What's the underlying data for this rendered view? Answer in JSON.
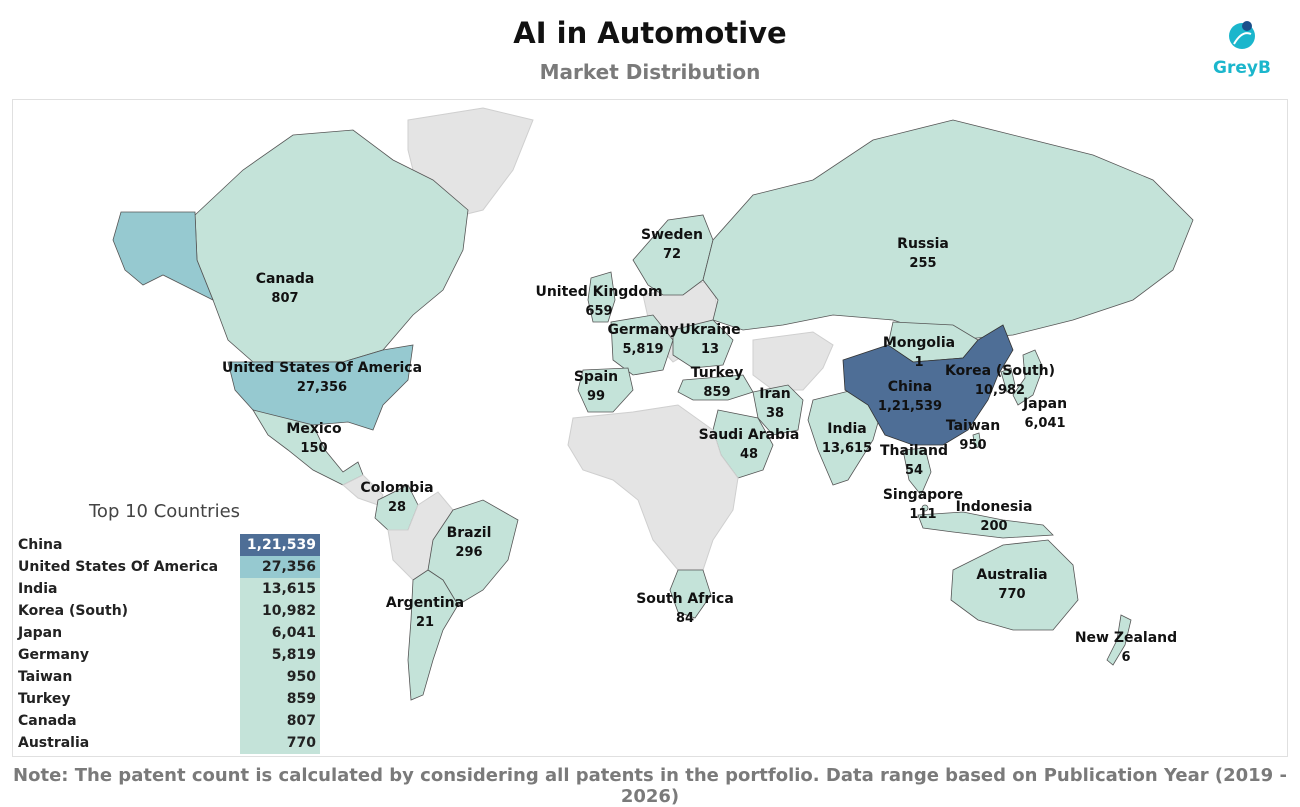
{
  "header": {
    "title": "AI in Automotive",
    "subtitle": "Market Distribution",
    "logo_text": "GreyB"
  },
  "colors": {
    "highest": "#4e6e96",
    "high": "#96c9d0",
    "low": "#c4e3d9",
    "no_data": "#e4e4e4",
    "border": "#555555",
    "logo": "#1bb6cc"
  },
  "map": {
    "countries": [
      {
        "name": "Canada",
        "value": "807"
      },
      {
        "name": "United States Of America",
        "value": "27,356"
      },
      {
        "name": "Mexico",
        "value": "150"
      },
      {
        "name": "Colombia",
        "value": "28"
      },
      {
        "name": "Brazil",
        "value": "296"
      },
      {
        "name": "Argentina",
        "value": "21"
      },
      {
        "name": "United Kingdom",
        "value": "659"
      },
      {
        "name": "Sweden",
        "value": "72"
      },
      {
        "name": "Germany",
        "value": "5,819"
      },
      {
        "name": "Ukraine",
        "value": "13"
      },
      {
        "name": "Spain",
        "value": "99"
      },
      {
        "name": "Turkey",
        "value": "859"
      },
      {
        "name": "Iran",
        "value": "38"
      },
      {
        "name": "Saudi Arabia",
        "value": "48"
      },
      {
        "name": "South Africa",
        "value": "84"
      },
      {
        "name": "Russia",
        "value": "255"
      },
      {
        "name": "Mongolia",
        "value": "1"
      },
      {
        "name": "China",
        "value": "1,21,539"
      },
      {
        "name": "Korea (South)",
        "value": "10,982"
      },
      {
        "name": "Japan",
        "value": "6,041"
      },
      {
        "name": "Taiwan",
        "value": "950"
      },
      {
        "name": "India",
        "value": "13,615"
      },
      {
        "name": "Thailand",
        "value": "54"
      },
      {
        "name": "Singapore",
        "value": "111"
      },
      {
        "name": "Indonesia",
        "value": "200"
      },
      {
        "name": "Australia",
        "value": "770"
      },
      {
        "name": "New Zealand",
        "value": "6"
      }
    ]
  },
  "top_countries": {
    "title": "Top 10 Countries",
    "rows": [
      {
        "name": "China",
        "value": "1,21,539",
        "tier": "highest"
      },
      {
        "name": "United States Of America",
        "value": "27,356",
        "tier": "high"
      },
      {
        "name": "India",
        "value": "13,615",
        "tier": "low"
      },
      {
        "name": "Korea (South)",
        "value": "10,982",
        "tier": "low"
      },
      {
        "name": "Japan",
        "value": "6,041",
        "tier": "low"
      },
      {
        "name": "Germany",
        "value": "5,819",
        "tier": "low"
      },
      {
        "name": "Taiwan",
        "value": "950",
        "tier": "low"
      },
      {
        "name": "Turkey",
        "value": "859",
        "tier": "low"
      },
      {
        "name": "Canada",
        "value": "807",
        "tier": "low"
      },
      {
        "name": "Australia",
        "value": "770",
        "tier": "low"
      }
    ]
  },
  "footer": {
    "note": "Note: The patent count is calculated by considering all patents in the portfolio. Data range based on Publication Year (2019 - 2026)"
  }
}
